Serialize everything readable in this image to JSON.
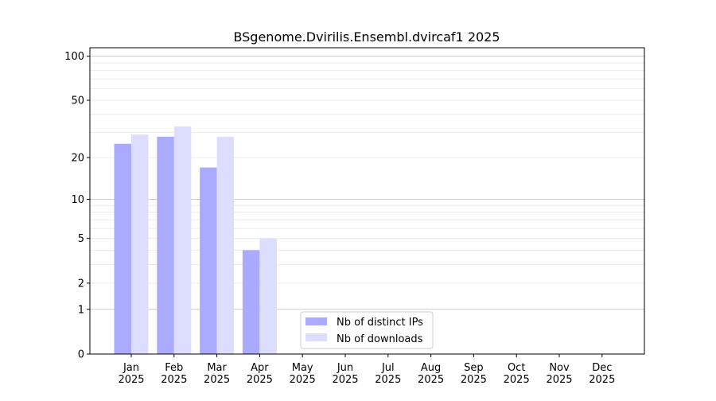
{
  "chart_data": {
    "type": "bar",
    "title": "BSgenome.Dvirilis.Ensembl.dvircaf1 2025",
    "xlabel": "",
    "ylabel": "",
    "yscale": "symlog",
    "ylim": [
      0,
      120
    ],
    "yticks": [
      0,
      1,
      2,
      5,
      10,
      20,
      50,
      100
    ],
    "grid": true,
    "legend_position": "lower-center",
    "categories": [
      "Jan\n2025",
      "Feb\n2025",
      "Mar\n2025",
      "Apr\n2025",
      "May\n2025",
      "Jun\n2025",
      "Jul\n2025",
      "Aug\n2025",
      "Sep\n2025",
      "Oct\n2025",
      "Nov\n2025",
      "Dec\n2025"
    ],
    "series": [
      {
        "name": "Nb of distinct IPs",
        "color": "#aaaaff",
        "values": [
          25,
          28,
          17,
          4,
          0,
          0,
          0,
          0,
          0,
          0,
          0,
          0
        ]
      },
      {
        "name": "Nb of downloads",
        "color": "#ddddff",
        "values": [
          29,
          33,
          28,
          5,
          0,
          0,
          0,
          0,
          0,
          0,
          0,
          0
        ]
      }
    ]
  }
}
